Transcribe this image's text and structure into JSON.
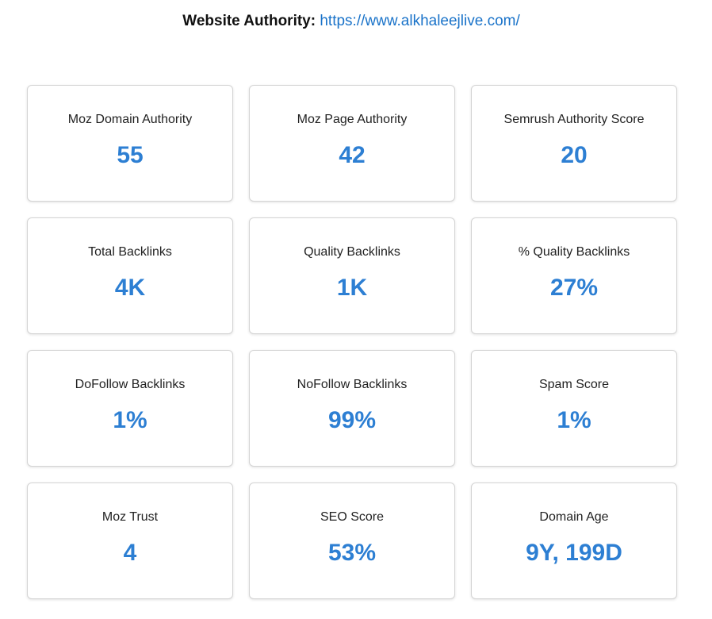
{
  "header": {
    "label": "Website Authority:",
    "url": "https://www.alkhaleejlive.com/"
  },
  "colors": {
    "accent": "#2d7fd3",
    "link": "#1a73c9",
    "card_border": "#d4d4d4"
  },
  "metrics": [
    {
      "label": "Moz Domain Authority",
      "value": "55"
    },
    {
      "label": "Moz Page Authority",
      "value": "42"
    },
    {
      "label": "Semrush Authority Score",
      "value": "20"
    },
    {
      "label": "Total Backlinks",
      "value": "4K"
    },
    {
      "label": "Quality Backlinks",
      "value": "1K"
    },
    {
      "label": "% Quality Backlinks",
      "value": "27%"
    },
    {
      "label": "DoFollow Backlinks",
      "value": "1%"
    },
    {
      "label": "NoFollow Backlinks",
      "value": "99%"
    },
    {
      "label": "Spam Score",
      "value": "1%"
    },
    {
      "label": "Moz Trust",
      "value": "4"
    },
    {
      "label": "SEO Score",
      "value": "53%"
    },
    {
      "label": "Domain Age",
      "value": "9Y, 199D"
    }
  ]
}
